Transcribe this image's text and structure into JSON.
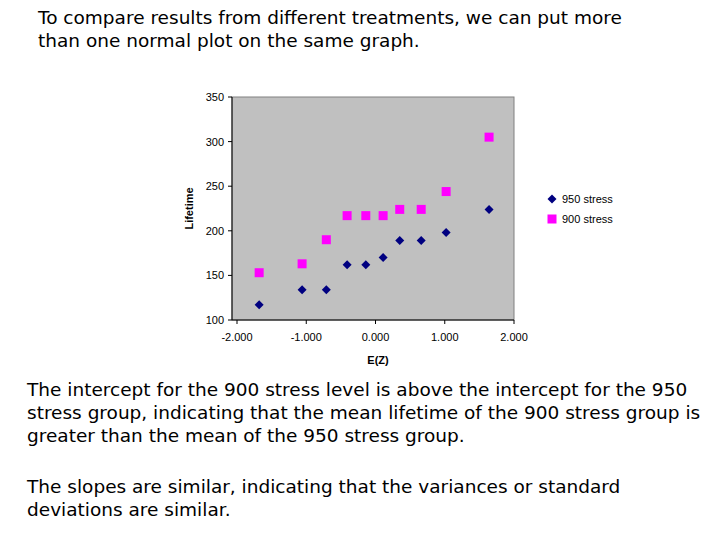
{
  "slide": {
    "heading": "To compare results from different treatments, we can put more than one normal plot on the same graph.",
    "paragraphs": [
      "The intercept for the 900 stress level is above the intercept for the 950 stress group, indicating that the mean lifetime of the 900 stress group is greater than the mean of the 950 stress group.",
      "The slopes are similar, indicating that the variances or standard deviations are similar."
    ]
  },
  "chart_data": {
    "type": "scatter",
    "x_label": "E(Z)",
    "y_label": "Lifetime",
    "x": [
      -1.68,
      -1.06,
      -0.71,
      -0.41,
      -0.14,
      0.11,
      0.35,
      0.66,
      1.02,
      1.64
    ],
    "series": [
      {
        "name": "950 stress",
        "color": "#000080",
        "marker": "diamond",
        "values": [
          117,
          134,
          134,
          162,
          162,
          170,
          189,
          189,
          198,
          224
        ]
      },
      {
        "name": "900 stress",
        "color": "#ff00ff",
        "marker": "square",
        "values": [
          153,
          163,
          190,
          217,
          217,
          217,
          224,
          224,
          244,
          305
        ]
      }
    ],
    "xlim": [
      -2,
      2
    ],
    "xticks": [
      {
        "value": -2,
        "label": "-2.000"
      },
      {
        "value": -1,
        "label": "-1.000"
      },
      {
        "value": 0,
        "label": "0.000"
      },
      {
        "value": 1,
        "label": "1.000"
      },
      {
        "value": 2,
        "label": "2.000"
      }
    ],
    "ylim": [
      100,
      350
    ],
    "yticks": [
      100,
      150,
      200,
      250,
      300,
      350
    ],
    "grid": false,
    "legend": "right"
  }
}
